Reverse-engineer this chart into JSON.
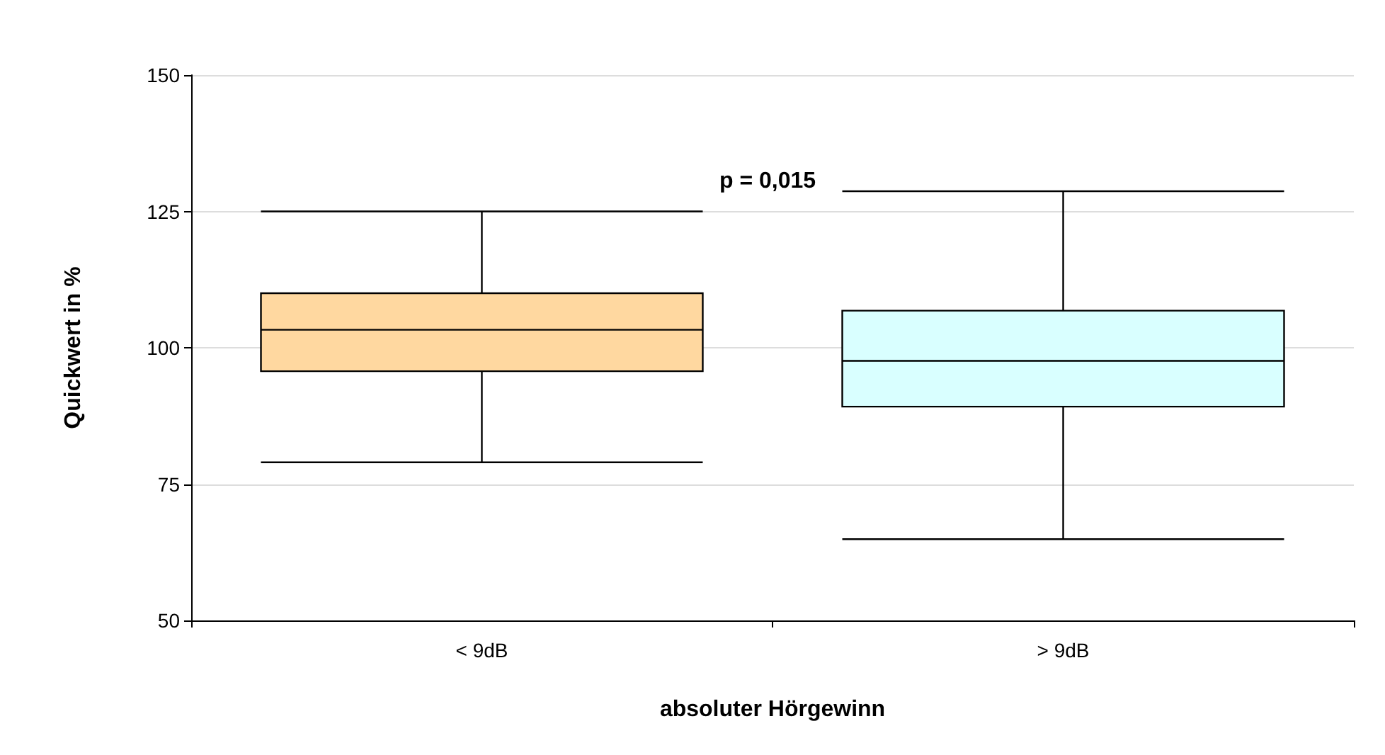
{
  "chart_data": {
    "type": "box",
    "categories": [
      "< 9dB",
      "> 9dB"
    ],
    "boxes": [
      {
        "low": 79,
        "q1": 95.7,
        "median": 103.3,
        "q3": 110,
        "high": 125
      },
      {
        "low": 64.9,
        "q1": 89.2,
        "median": 97.6,
        "q3": 106.8,
        "high": 128.7
      }
    ],
    "colors": [
      "#ffd8a0",
      "#d9ffff"
    ],
    "ylabel": "Quickwert in %",
    "xlabel": "absoluter Hörgewinn",
    "ylim": [
      50,
      150
    ],
    "yticks": [
      50,
      75,
      100,
      125,
      150
    ],
    "grid": "y",
    "annotations": [
      "p = 0,015"
    ]
  }
}
